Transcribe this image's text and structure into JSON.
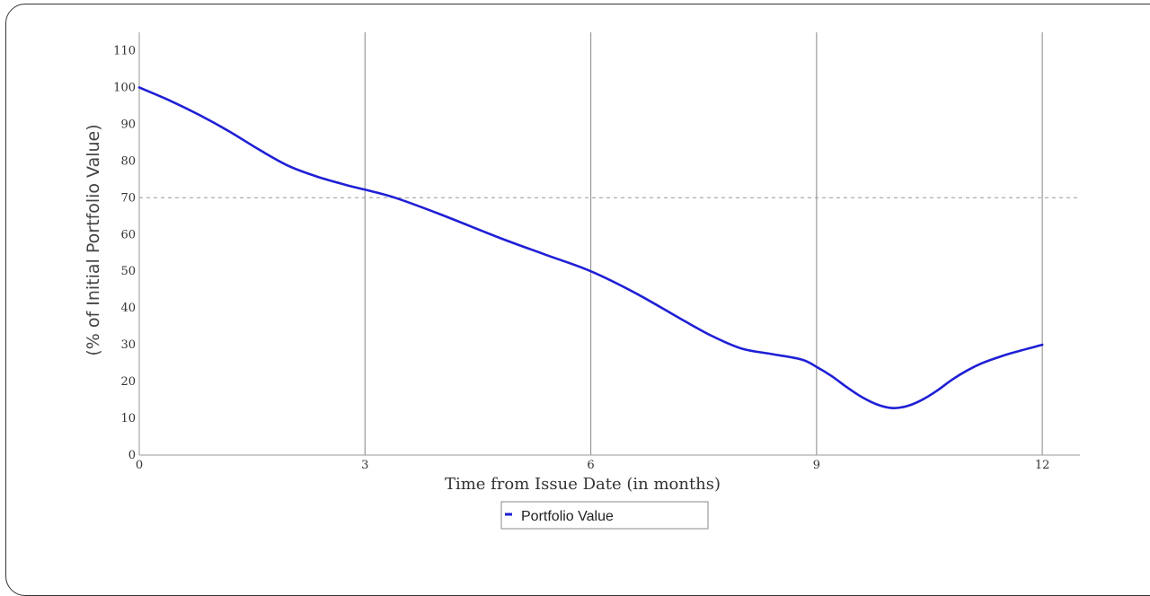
{
  "chart_data": {
    "type": "line",
    "title": "",
    "xlabel": "Time from Issue Date (in months)",
    "ylabel": "(% of Initial Portfolio Value)",
    "xlim": [
      0,
      12.5
    ],
    "ylim": [
      0,
      115
    ],
    "x_ticks": [
      "0",
      "3",
      "6",
      "9",
      "12"
    ],
    "y_ticks": [
      "0",
      "10",
      "20",
      "30",
      "40",
      "50",
      "60",
      "70",
      "80",
      "90",
      "100",
      "110"
    ],
    "grid": "vertical lines at x ticks",
    "reference_line": {
      "y": 70,
      "style": "dashed"
    },
    "legend_position": "bottom-center",
    "series": [
      {
        "name": "Portfolio Value",
        "color": "#1f1fd6",
        "x": [
          0,
          0.4,
          0.8,
          1.2,
          1.6,
          2.0,
          2.4,
          2.8,
          3.0,
          3.4,
          4.0,
          4.8,
          5.4,
          6.0,
          6.6,
          7.2,
          7.6,
          8.0,
          8.4,
          8.8,
          9.0,
          9.2,
          9.4,
          9.6,
          9.8,
          10.0,
          10.2,
          10.4,
          10.6,
          10.8,
          11.0,
          11.2,
          11.4,
          11.6,
          12.0
        ],
        "y": [
          100,
          96.5,
          92.5,
          88,
          83,
          78.5,
          75.5,
          73.2,
          72.2,
          70,
          65.5,
          59,
          54.5,
          50,
          44,
          37,
          32.5,
          29,
          27.5,
          26,
          24,
          21.5,
          18.5,
          15.8,
          13.8,
          12.8,
          13.3,
          15,
          17.5,
          20.5,
          23,
          25,
          26.5,
          27.8,
          30
        ]
      }
    ]
  }
}
